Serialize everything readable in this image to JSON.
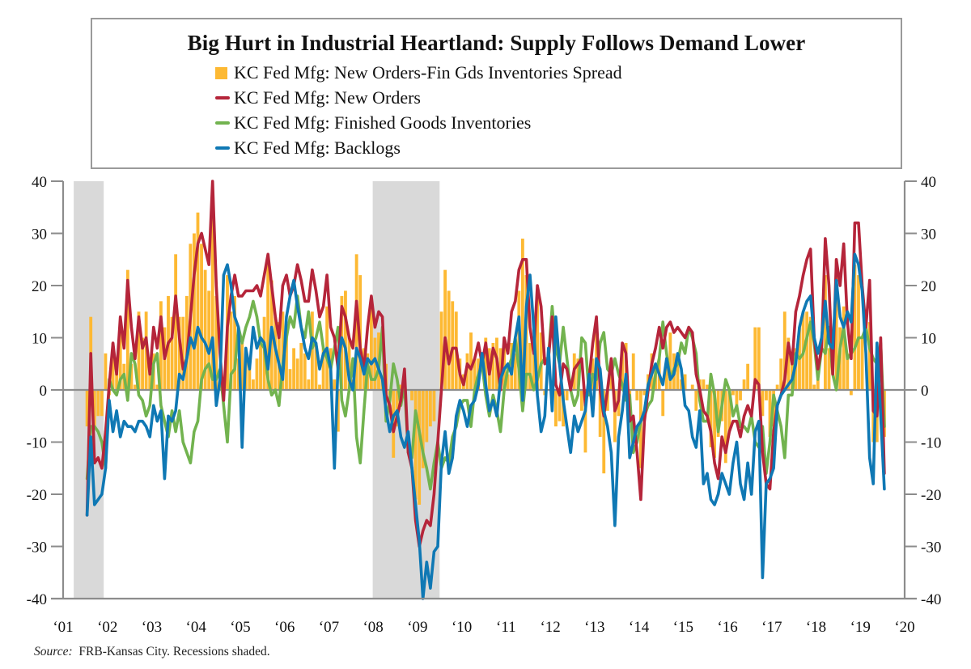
{
  "chart_data": {
    "type": "bar+line",
    "title": "Big Hurt in Industrial Heartland: Supply Follows Demand Lower",
    "source_label": "Source:",
    "source_text": "FRB-Kansas City. Recessions shaded.",
    "xlabel": "",
    "ylabel_left": "",
    "ylabel_right": "",
    "ylim": [
      -40,
      40
    ],
    "yticks": [
      40,
      30,
      20,
      10,
      0,
      -10,
      -20,
      -30,
      -40
    ],
    "ytick_labels": [
      "40",
      "30",
      "20",
      "10",
      "0",
      "-10",
      "-20",
      "-30",
      "-40"
    ],
    "xticks": [
      "‘01",
      "‘02",
      "‘03",
      "‘04",
      "‘05",
      "‘06",
      "‘07",
      "‘08",
      "‘09",
      "‘10",
      "‘11",
      "‘12",
      "‘13",
      "‘14",
      "‘15",
      "‘16",
      "‘17",
      "‘18",
      "‘19",
      "‘20"
    ],
    "x_start": "2001-07",
    "x_end": "2019-07",
    "frequency": "monthly",
    "grid": false,
    "legend_position": "top (boxed, above plot)",
    "recessions": [
      {
        "start": "2001-03",
        "end": "2001-11"
      },
      {
        "start": "2007-12",
        "end": "2009-06"
      }
    ],
    "colors": {
      "spread": "#FDB933",
      "new_orders": "#B5253A",
      "inventories": "#72B34F",
      "backlogs": "#0F78B4",
      "recession": "#D9D9D9",
      "axis": "#8C8C8C"
    },
    "series": [
      {
        "key": "spread",
        "type": "bar",
        "name": "KC Fed Mfg: New Orders-Fin Gds Inventories Spread",
        "values": [
          -7,
          14,
          -7,
          -5,
          -5,
          7,
          -1,
          9,
          4,
          12,
          5,
          23,
          5,
          1,
          15,
          10,
          15,
          6,
          7,
          1,
          17,
          12,
          18,
          14,
          26,
          14,
          14,
          18,
          28,
          30,
          34,
          28,
          23,
          19,
          38,
          18,
          3,
          1,
          22,
          15,
          18,
          6,
          9,
          7,
          5,
          2,
          6,
          9,
          14,
          24,
          21,
          14,
          13,
          15,
          12,
          4,
          8,
          6,
          9,
          7,
          2,
          15,
          9,
          1,
          8,
          16,
          8,
          2,
          -8,
          18,
          19,
          10,
          2,
          26,
          22,
          8,
          7,
          16,
          10,
          11,
          2,
          5,
          -1,
          -13,
          -7,
          1,
          3,
          0,
          -2,
          -21,
          -22,
          -15,
          -10,
          -7,
          -6,
          0,
          15,
          23,
          19,
          17,
          15,
          6,
          3,
          7,
          11,
          6,
          6,
          0,
          10,
          8,
          9,
          10,
          8,
          10,
          3,
          9,
          7,
          19,
          29,
          22,
          9,
          7,
          18,
          11,
          -1,
          0,
          -2,
          -7,
          -6,
          -7,
          -2,
          0,
          7,
          6,
          -4,
          -12,
          3,
          6,
          12,
          -9,
          -16,
          -4,
          3,
          -10,
          -5,
          8,
          9,
          -5,
          7,
          -2,
          -15,
          -1,
          3,
          7,
          5,
          6,
          -5,
          5,
          11,
          7,
          7,
          2,
          3,
          0,
          1,
          -4,
          2,
          2,
          1,
          -11,
          -13,
          -9,
          -6,
          -14,
          -8,
          -1,
          -3,
          -2,
          2,
          5,
          0,
          12,
          12,
          -5,
          -2,
          -9,
          -7,
          1,
          6,
          15,
          10,
          6,
          8,
          12,
          15,
          15,
          14,
          1,
          2,
          0,
          22,
          8,
          0,
          25,
          12,
          16,
          7,
          -1,
          24,
          22,
          10,
          0,
          13,
          -10,
          -10,
          1,
          -9
        ]
      },
      {
        "key": "new_orders",
        "type": "line",
        "name": "KC Fed Mfg: New Orders",
        "values": [
          -24,
          7,
          -14,
          -13,
          -15,
          -8,
          1,
          9,
          3,
          14,
          8,
          21,
          12,
          6,
          14,
          8,
          10,
          3,
          12,
          8,
          14,
          6,
          9,
          10,
          18,
          10,
          4,
          6,
          14,
          22,
          28,
          30,
          27,
          24,
          40,
          20,
          7,
          -2,
          12,
          18,
          22,
          18,
          18,
          19,
          19,
          19,
          20,
          18,
          22,
          26,
          20,
          14,
          10,
          20,
          22,
          18,
          20,
          24,
          21,
          17,
          17,
          23,
          19,
          14,
          16,
          22,
          12,
          10,
          4,
          16,
          14,
          10,
          8,
          17,
          8,
          4,
          12,
          18,
          12,
          15,
          14,
          -1,
          -3,
          -8,
          -5,
          -2,
          4,
          -12,
          -15,
          -25,
          -30,
          -27,
          -25,
          -26,
          -20,
          -10,
          0,
          10,
          5,
          8,
          8,
          3,
          1,
          5,
          4,
          6,
          9,
          5,
          9,
          3,
          8,
          6,
          0,
          10,
          7,
          15,
          17,
          23,
          25,
          25,
          12,
          7,
          20,
          16,
          5,
          6,
          14,
          1,
          -1,
          5,
          4,
          0,
          4,
          5,
          6,
          -3,
          2,
          9,
          14,
          0,
          -5,
          0,
          6,
          -4,
          -2,
          9,
          7,
          -6,
          -5,
          -12,
          -21,
          -6,
          0,
          5,
          8,
          12,
          8,
          12,
          13,
          11,
          12,
          11,
          10,
          12,
          11,
          3,
          0,
          -4,
          -5,
          -8,
          -14,
          -17,
          -9,
          -12,
          -8,
          -6,
          -6,
          -9,
          -5,
          -3,
          -5,
          2,
          1,
          -12,
          -18,
          -19,
          -8,
          -3,
          -1,
          2,
          9,
          5,
          15,
          18,
          22,
          25,
          27,
          10,
          4,
          8,
          29,
          20,
          3,
          25,
          20,
          28,
          13,
          6,
          32,
          32,
          20,
          12,
          21,
          -4,
          -5,
          10,
          -16
        ]
      },
      {
        "key": "inventories",
        "type": "line",
        "name": "KC Fed Mfg: Finished Goods Inventories",
        "values": [
          -17,
          -7,
          -7,
          -8,
          -10,
          -15,
          2,
          0,
          -1,
          2,
          3,
          -2,
          7,
          5,
          -1,
          -2,
          -5,
          -3,
          5,
          7,
          -3,
          -6,
          -9,
          -4,
          -8,
          -4,
          -10,
          -12,
          -14,
          -8,
          -6,
          2,
          4,
          5,
          2,
          2,
          4,
          -3,
          -10,
          3,
          4,
          12,
          9,
          12,
          14,
          17,
          14,
          9,
          8,
          2,
          -1,
          0,
          -3,
          5,
          10,
          14,
          12,
          18,
          12,
          10,
          15,
          8,
          10,
          13,
          8,
          6,
          4,
          8,
          12,
          -2,
          -5,
          0,
          6,
          -9,
          -14,
          -4,
          5,
          2,
          2,
          4,
          12,
          -6,
          -2,
          5,
          2,
          -3,
          1,
          -12,
          -13,
          -4,
          -8,
          -12,
          -15,
          -19,
          -14,
          -10,
          -15,
          -13,
          -14,
          -9,
          -7,
          -3,
          -2,
          -2,
          -7,
          0,
          3,
          5,
          -1,
          -5,
          -1,
          -4,
          -8,
          0,
          4,
          6,
          10,
          4,
          -4,
          3,
          3,
          0,
          2,
          5,
          6,
          6,
          16,
          8,
          5,
          12,
          6,
          0,
          -3,
          -1,
          10,
          9,
          -1,
          3,
          2,
          9,
          11,
          4,
          3,
          6,
          3,
          1,
          -2,
          -1,
          -12,
          -10,
          -6,
          -5,
          -3,
          -2,
          3,
          6,
          13,
          7,
          2,
          4,
          5,
          9,
          7,
          12,
          10,
          7,
          -2,
          -6,
          -6,
          3,
          -1,
          -8,
          -3,
          2,
          0,
          -5,
          -3,
          -7,
          -7,
          -8,
          -5,
          -10,
          -11,
          -7,
          -16,
          -10,
          -1,
          -4,
          -7,
          -13,
          -1,
          -1,
          7,
          6,
          7,
          10,
          13,
          9,
          2,
          8,
          7,
          12,
          3,
          0,
          8,
          12,
          6,
          7,
          8,
          10,
          10,
          12,
          8,
          6,
          5,
          9,
          -7
        ]
      },
      {
        "key": "backlogs",
        "type": "line",
        "name": "KC Fed Mfg: Backlogs",
        "values": [
          -24,
          -9,
          -22,
          -21,
          -20,
          -15,
          -2,
          -8,
          -4,
          -9,
          -6,
          -7,
          -7,
          -8,
          -6,
          -6,
          -7,
          -9,
          -3,
          -6,
          -4,
          -17,
          -5,
          -6,
          -4,
          3,
          2,
          6,
          10,
          8,
          12,
          10,
          9,
          7,
          10,
          -3,
          2,
          22,
          24,
          20,
          14,
          12,
          -11,
          8,
          4,
          12,
          8,
          10,
          9,
          4,
          12,
          8,
          5,
          2,
          14,
          18,
          21,
          16,
          12,
          8,
          6,
          10,
          9,
          4,
          7,
          8,
          4,
          -15,
          5,
          10,
          8,
          2,
          0,
          8,
          6,
          3,
          6,
          5,
          6,
          4,
          2,
          -4,
          -8,
          -5,
          -4,
          -9,
          -11,
          -8,
          -15,
          -22,
          -29,
          -40,
          -33,
          -38,
          -31,
          -30,
          -14,
          -8,
          -16,
          -13,
          -5,
          -2,
          -4,
          -7,
          -3,
          -2,
          1,
          7,
          1,
          -4,
          -2,
          -5,
          2,
          4,
          5,
          3,
          10,
          14,
          -2,
          16,
          22,
          12,
          -1,
          -8,
          -5,
          8,
          -4,
          14,
          5,
          -2,
          -7,
          -12,
          -5,
          -8,
          -6,
          -4,
          3,
          -5,
          6,
          4,
          -4,
          -7,
          -12,
          -26,
          -9,
          -4,
          3,
          -13,
          -10,
          -7,
          -6,
          -4,
          1,
          3,
          5,
          3,
          1,
          6,
          2,
          3,
          7,
          4,
          -3,
          -4,
          -9,
          -11,
          -4,
          -18,
          -16,
          -21,
          -22,
          -20,
          -16,
          -18,
          -20,
          -14,
          -10,
          -18,
          -21,
          -14,
          -20,
          -8,
          -6,
          -36,
          -18,
          -17,
          -15,
          -3,
          -1,
          0,
          1,
          2,
          5,
          12,
          15,
          17,
          18,
          10,
          7,
          10,
          17,
          9,
          8,
          21,
          14,
          12,
          15,
          13,
          26,
          24,
          19,
          7,
          -13,
          -18,
          9,
          -5,
          -19
        ]
      }
    ]
  }
}
